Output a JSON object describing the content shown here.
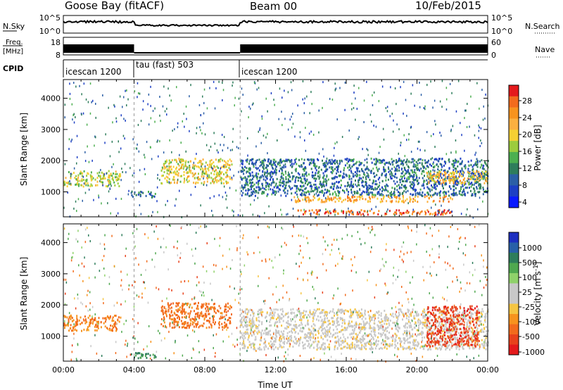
{
  "header": {
    "station": "Goose Bay (fitACF)",
    "beam": "Beam 00",
    "date": "10/Feb/2015"
  },
  "top_panels": {
    "nsky_label": "N.Sky",
    "nsky_ticks": [
      "10^5",
      "10^0"
    ],
    "nsearch_label": "N.Search",
    "nsearch_ticks": [
      "10^5",
      "10^0"
    ],
    "freq_label_1": "Freq.",
    "freq_label_2": "[MHz]",
    "freq_ticks": [
      "18",
      "8"
    ],
    "nave_label": "Nave",
    "nave_ticks": [
      "60",
      "0"
    ],
    "cpid_label": "CPID",
    "cpid_segments": [
      {
        "label": "icescan 1200",
        "start_h": 0,
        "end_h": 4
      },
      {
        "label": "tau (fast) 503",
        "start_h": 4,
        "end_h": 10
      },
      {
        "label": "icescan 1200",
        "start_h": 10,
        "end_h": 24
      }
    ]
  },
  "colorbars": {
    "power": {
      "label": "Power [dB]",
      "ticks": [
        "28",
        "24",
        "20",
        "16",
        "12",
        "8",
        "4"
      ],
      "colors": [
        "#e41a1c",
        "#f26b1d",
        "#f7931e",
        "#fbb040",
        "#f5d033",
        "#9ccc3d",
        "#4caf50",
        "#2e7d5b",
        "#2b5fa6",
        "#1d3fc4",
        "#0a1aff"
      ]
    },
    "velocity": {
      "label": "Velocity [m s",
      "label_sup": "-1",
      "label_end": "]",
      "ticks": [
        "1000",
        "500",
        "100",
        "25",
        "-25",
        "-100",
        "-500",
        "-1000"
      ],
      "colors": [
        "#1d2fc0",
        "#2860a8",
        "#2e7d5b",
        "#4fa84f",
        "#8fd16a",
        "#c8c8c8",
        "#c8c8c8",
        "#f5c542",
        "#f7931e",
        "#f26b1d",
        "#e8421c",
        "#e41a1c"
      ]
    }
  },
  "chart_data": [
    {
      "type": "heatmap",
      "name": "power",
      "xlabel": "",
      "ylabel": "Slant Range [km]",
      "xlim": [
        0,
        24
      ],
      "ylim": [
        200,
        4600
      ],
      "yticks": [
        "1000",
        "2000",
        "3000",
        "4000"
      ],
      "clim": [
        0,
        30
      ],
      "blobs": [
        {
          "t0": 0.0,
          "t1": 3.2,
          "r0": 1200,
          "r1": 1700,
          "v": 16
        },
        {
          "t0": 3.8,
          "t1": 5.2,
          "r0": 850,
          "r1": 1050,
          "v": 8
        },
        {
          "t0": 5.5,
          "t1": 9.5,
          "r0": 1300,
          "r1": 2100,
          "v": 18
        },
        {
          "t0": 10.0,
          "t1": 24.0,
          "r0": 900,
          "r1": 2100,
          "v": 7
        },
        {
          "t0": 13.0,
          "t1": 22.0,
          "r0": 300,
          "r1": 450,
          "v": 27
        },
        {
          "t0": 13.0,
          "t1": 22.0,
          "r0": 700,
          "r1": 900,
          "v": 22
        },
        {
          "t0": 20.5,
          "t1": 24.0,
          "r0": 1300,
          "r1": 1700,
          "v": 20
        }
      ]
    },
    {
      "type": "heatmap",
      "name": "velocity",
      "xlabel": "Time UT",
      "ylabel": "Slant Range [km]",
      "xlim": [
        0,
        24
      ],
      "ylim": [
        200,
        4600
      ],
      "xticks": [
        "00:00",
        "04:00",
        "08:00",
        "12:00",
        "16:00",
        "20:00",
        "00:00"
      ],
      "yticks": [
        "1000",
        "2000",
        "3000",
        "4000"
      ],
      "clim": [
        -1000,
        1000
      ],
      "blobs": [
        {
          "t0": 0.0,
          "t1": 3.2,
          "r0": 1200,
          "r1": 1700,
          "v": -100
        },
        {
          "t0": 3.8,
          "t1": 5.2,
          "r0": 300,
          "r1": 500,
          "v": 300
        },
        {
          "t0": 5.5,
          "t1": 9.5,
          "r0": 1300,
          "r1": 2100,
          "v": -150
        },
        {
          "t0": 10.0,
          "t1": 24.0,
          "r0": 600,
          "r1": 1900,
          "v": 0
        },
        {
          "t0": 20.5,
          "t1": 23.5,
          "r0": 700,
          "r1": 2000,
          "v": -400
        }
      ]
    }
  ]
}
